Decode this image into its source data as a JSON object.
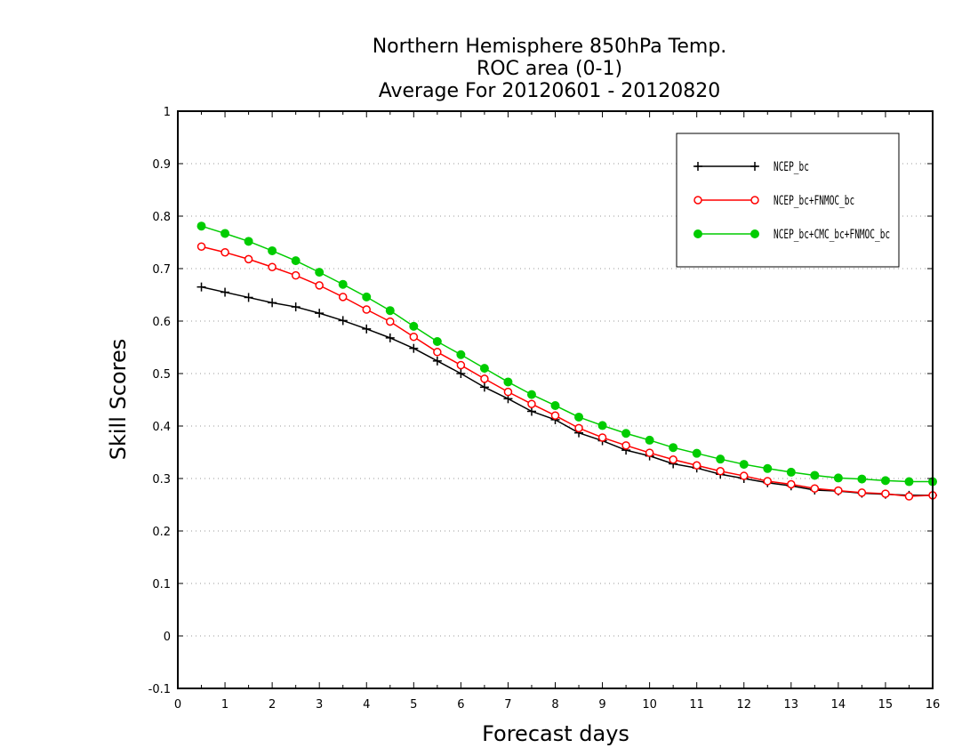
{
  "chart_data": {
    "type": "line",
    "title_lines": [
      "Northern Hemisphere 850hPa Temp.",
      "ROC area (0-1)",
      "Average For 20120601 - 20120820"
    ],
    "xlabel": "Forecast days",
    "ylabel": "Skill Scores",
    "xlim": [
      0,
      16
    ],
    "ylim": [
      -0.1,
      1
    ],
    "x_ticks": [
      0,
      1,
      2,
      3,
      4,
      5,
      6,
      7,
      8,
      9,
      10,
      11,
      12,
      13,
      14,
      15,
      16
    ],
    "y_ticks": [
      -0.1,
      0,
      0.1,
      0.2,
      0.3,
      0.4,
      0.5,
      0.6,
      0.7,
      0.8,
      0.9,
      1
    ],
    "y_tick_labels": [
      "-0.1",
      "0",
      "0.1",
      "0.2",
      "0.3",
      "0.4",
      "0.5",
      "0.6",
      "0.7",
      "0.8",
      "0.9",
      "1"
    ],
    "grid": "horizontal dotted",
    "legend_position": "top-right",
    "x": [
      0.5,
      1,
      1.5,
      2,
      2.5,
      3,
      3.5,
      4,
      4.5,
      5,
      5.5,
      6,
      6.5,
      7,
      7.5,
      8,
      8.5,
      9,
      9.5,
      10,
      10.5,
      11,
      11.5,
      12,
      12.5,
      13,
      13.5,
      14,
      14.5,
      15,
      15.5,
      16
    ],
    "series": [
      {
        "name": "NCEP_bc",
        "color": "#000000",
        "marker": "plus",
        "values": [
          0.665,
          0.655,
          0.645,
          0.635,
          0.627,
          0.615,
          0.601,
          0.585,
          0.568,
          0.548,
          0.524,
          0.5,
          0.474,
          0.452,
          0.428,
          0.412,
          0.387,
          0.372,
          0.354,
          0.343,
          0.328,
          0.32,
          0.308,
          0.3,
          0.292,
          0.286,
          0.278,
          0.276,
          0.272,
          0.27,
          0.268,
          0.268
        ]
      },
      {
        "name": "NCEP_bc+FNMOC_bc",
        "color": "#ff0000",
        "marker": "circle-open",
        "values": [
          0.742,
          0.731,
          0.718,
          0.703,
          0.687,
          0.668,
          0.646,
          0.622,
          0.599,
          0.57,
          0.541,
          0.516,
          0.49,
          0.465,
          0.442,
          0.42,
          0.396,
          0.378,
          0.363,
          0.349,
          0.336,
          0.325,
          0.314,
          0.305,
          0.295,
          0.289,
          0.281,
          0.277,
          0.273,
          0.271,
          0.266,
          0.268
        ]
      },
      {
        "name": "NCEP_bc+CMC_bc+FNMOC_bc",
        "color": "#00cc00",
        "marker": "circle-filled",
        "values": [
          0.781,
          0.767,
          0.752,
          0.734,
          0.715,
          0.693,
          0.67,
          0.646,
          0.62,
          0.59,
          0.561,
          0.536,
          0.51,
          0.484,
          0.46,
          0.439,
          0.417,
          0.401,
          0.386,
          0.373,
          0.359,
          0.348,
          0.337,
          0.327,
          0.319,
          0.312,
          0.306,
          0.301,
          0.299,
          0.296,
          0.294,
          0.294
        ]
      }
    ]
  }
}
